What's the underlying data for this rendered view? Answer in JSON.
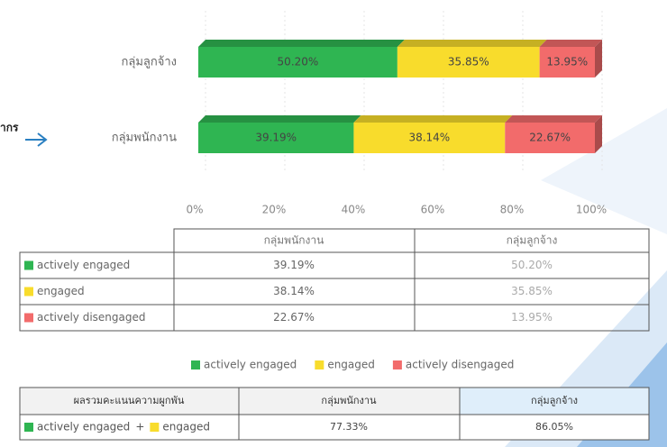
{
  "side_label": "ากร",
  "chart_data": {
    "type": "bar",
    "orientation": "horizontal",
    "stacked": true,
    "categories": [
      "กลุ่มลูกจ้าง",
      "กลุ่มพนักงาน"
    ],
    "series": [
      {
        "name": "actively engaged",
        "color": "#2fb552",
        "values": [
          50.2,
          39.19
        ],
        "value_labels": [
          "50.20%",
          "39.19%"
        ]
      },
      {
        "name": "engaged",
        "color": "#f8dc2c",
        "values": [
          35.85,
          38.14
        ],
        "value_labels": [
          "35.85%",
          "38.14%"
        ]
      },
      {
        "name": "actively disengaged",
        "color": "#f26b6b",
        "values": [
          13.95,
          22.67
        ],
        "value_labels": [
          "13.95%",
          "22.67%"
        ]
      }
    ],
    "xlim": [
      0,
      100
    ],
    "xticks": [
      {
        "value": 0,
        "label": "0%"
      },
      {
        "value": 20,
        "label": "20%"
      },
      {
        "value": 40,
        "label": "40%"
      },
      {
        "value": 60,
        "label": "60%"
      },
      {
        "value": 80,
        "label": "80%"
      },
      {
        "value": 100,
        "label": "100%"
      }
    ],
    "grid": true,
    "legend": "bottom"
  },
  "summary_table": {
    "header": "ผลรวมคะแนนความผูกพัน",
    "joiner": "+",
    "values": [
      "77.33%",
      "86.05%"
    ]
  }
}
